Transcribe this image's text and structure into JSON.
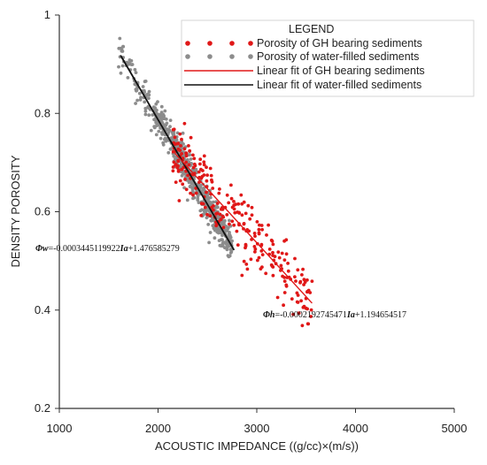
{
  "chart_data": {
    "type": "scatter",
    "xlabel": "ACOUSTIC IMPEDANCE ((g/cc)×(m/s))",
    "ylabel": "DENSITY POROSITY",
    "xlim": [
      1000,
      5000
    ],
    "ylim": [
      0.2,
      1.0
    ],
    "x_ticks": [
      1000,
      2000,
      3000,
      4000,
      5000
    ],
    "y_ticks": [
      0.2,
      0.4,
      0.6,
      0.8,
      1.0
    ],
    "x_tick_labels": [
      "1000",
      "2000",
      "3000",
      "4000",
      "5000"
    ],
    "y_tick_labels": [
      "0.2",
      "0.4",
      "0.6",
      "0.8",
      "1"
    ],
    "grid": false,
    "legend": {
      "title": "LEGEND",
      "placement": "top-right",
      "entries": [
        {
          "label": "Porosity of GH bearing sediments",
          "kind": "markers",
          "color": "#e01818"
        },
        {
          "label": "Porosity of water-filled sediments",
          "kind": "markers",
          "color": "#8c8c8c"
        },
        {
          "label": "Linear fit of GH bearing sediments",
          "kind": "line",
          "color": "#e01818"
        },
        {
          "label": "Linear fit of water-filled sediments",
          "kind": "line",
          "color": "#111111"
        }
      ]
    },
    "series": [
      {
        "name": "Porosity of water-filled sediments",
        "color": "#8c8c8c",
        "x_range": [
          1600,
          2750
        ],
        "fit": {
          "slope": -0.0003445119922,
          "intercept": 1.476585279
        },
        "scatter_sd": 0.018,
        "points_count": 620
      },
      {
        "name": "Porosity of GH bearing sediments",
        "color": "#e01818",
        "x_range": [
          2150,
          3560
        ],
        "fit": {
          "slope": -0.0002192745471,
          "intercept": 1.194654517
        },
        "scatter_sd": 0.035,
        "points_count": 260
      }
    ],
    "fit_lines": [
      {
        "name": "Linear fit of water-filled sediments",
        "color": "#111111",
        "x": [
          1620,
          2770
        ],
        "y": [
          0.918,
          0.522
        ]
      },
      {
        "name": "Linear fit of GH bearing sediments",
        "color": "#e01818",
        "x": [
          2170,
          3560
        ],
        "y": [
          0.719,
          0.414
        ]
      }
    ],
    "annotations": [
      {
        "id": "eq_w",
        "symbol": "Φw",
        "text": "=-0.0003445119922",
        "symbol2": "Ia",
        "text2": "+1.476585279"
      },
      {
        "id": "eq_h",
        "symbol": "Φh",
        "text": "=-0.0002192745471",
        "symbol2": "Ia",
        "text2": "+1.194654517"
      }
    ]
  }
}
